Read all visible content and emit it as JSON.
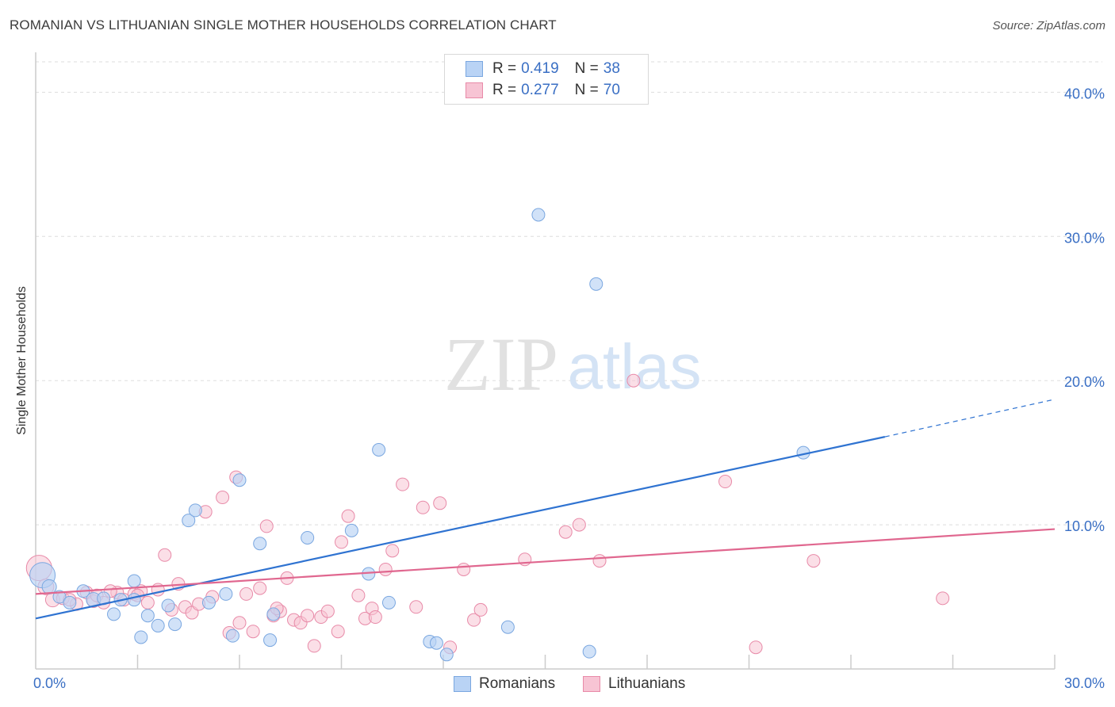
{
  "title": "ROMANIAN VS LITHUANIAN SINGLE MOTHER HOUSEHOLDS CORRELATION CHART",
  "source": "Source: ZipAtlas.com",
  "watermark": {
    "zip": "ZIP",
    "atlas": "atlas"
  },
  "legend": {
    "romanians": {
      "r_label": "R =",
      "r_value": "0.419",
      "n_label": "N =",
      "n_value": "38"
    },
    "lithuanians": {
      "r_label": "R =",
      "r_value": "0.277",
      "n_label": "N =",
      "n_value": "70"
    }
  },
  "colors": {
    "romanians_fill": "#b9d3f5",
    "romanians_stroke": "#7aa7e0",
    "romanians_line": "#2f73d1",
    "lithuanians_fill": "#f7c4d4",
    "lithuanians_stroke": "#e88aa8",
    "lithuanians_line": "#e0678f",
    "tick_label": "#3a6fc4",
    "grid": "#dddddd"
  },
  "chart_data": {
    "type": "scatter",
    "title": "ROMANIAN VS LITHUANIAN SINGLE MOTHER HOUSEHOLDS CORRELATION CHART",
    "xlabel": "",
    "ylabel": "Single Mother Households",
    "xlim": [
      0,
      30
    ],
    "ylim": [
      0,
      42
    ],
    "x_tick_labels": [
      {
        "value": 0,
        "label": "0.0%"
      },
      {
        "value": 30,
        "label": "30.0%"
      }
    ],
    "y_tick_labels": [
      {
        "value": 10,
        "label": "10.0%"
      },
      {
        "value": 20,
        "label": "20.0%"
      },
      {
        "value": 30,
        "label": "30.0%"
      },
      {
        "value": 40,
        "label": "40.0%"
      }
    ],
    "series": [
      {
        "name": "Romanians",
        "r": 0.419,
        "n": 38,
        "trend": {
          "x0": 0,
          "y0": 3.5,
          "x1": 25,
          "y1": 16.1,
          "dash_to_x": 30,
          "dash_to_y": 18.7
        },
        "points": [
          [
            0.2,
            6.5,
            16
          ],
          [
            0.4,
            5.7,
            9
          ],
          [
            0.7,
            5.0,
            8
          ],
          [
            1.0,
            4.6,
            8
          ],
          [
            1.4,
            5.4,
            8
          ],
          [
            1.7,
            4.8,
            9
          ],
          [
            2.0,
            4.9,
            8
          ],
          [
            2.3,
            3.8,
            8
          ],
          [
            2.5,
            4.8,
            8
          ],
          [
            2.9,
            6.1,
            8
          ],
          [
            3.1,
            2.2,
            8
          ],
          [
            3.3,
            3.7,
            8
          ],
          [
            3.6,
            3.0,
            8
          ],
          [
            3.9,
            4.4,
            8
          ],
          [
            4.1,
            3.1,
            8
          ],
          [
            4.5,
            10.3,
            8
          ],
          [
            4.7,
            11.0,
            8
          ],
          [
            5.1,
            4.6,
            8
          ],
          [
            5.6,
            5.2,
            8
          ],
          [
            5.8,
            2.3,
            8
          ],
          [
            6.0,
            13.1,
            8
          ],
          [
            6.6,
            8.7,
            8
          ],
          [
            6.9,
            2.0,
            8
          ],
          [
            7.0,
            3.8,
            8
          ],
          [
            8.0,
            9.1,
            8
          ],
          [
            9.3,
            9.6,
            8
          ],
          [
            9.8,
            6.6,
            8
          ],
          [
            10.1,
            15.2,
            8
          ],
          [
            10.4,
            4.6,
            8
          ],
          [
            11.6,
            1.9,
            8
          ],
          [
            11.8,
            1.8,
            8
          ],
          [
            12.1,
            1.0,
            8
          ],
          [
            13.9,
            2.9,
            8
          ],
          [
            14.8,
            31.5,
            8
          ],
          [
            16.3,
            1.2,
            8
          ],
          [
            16.5,
            26.7,
            8
          ],
          [
            22.6,
            15.0,
            8
          ],
          [
            2.9,
            4.8,
            8
          ]
        ]
      },
      {
        "name": "Lithuanians",
        "r": 0.277,
        "n": 70,
        "trend": {
          "x0": 0,
          "y0": 5.2,
          "x1": 30,
          "y1": 9.7
        },
        "points": [
          [
            0.1,
            7.0,
            16
          ],
          [
            0.3,
            5.7,
            10
          ],
          [
            0.5,
            4.8,
            9
          ],
          [
            0.8,
            4.9,
            8
          ],
          [
            1.2,
            4.5,
            8
          ],
          [
            1.5,
            5.3,
            8
          ],
          [
            1.7,
            4.7,
            8
          ],
          [
            1.8,
            5.1,
            8
          ],
          [
            2.0,
            4.6,
            8
          ],
          [
            2.4,
            5.3,
            8
          ],
          [
            2.6,
            4.8,
            8
          ],
          [
            2.9,
            5.2,
            8
          ],
          [
            3.1,
            5.4,
            8
          ],
          [
            3.3,
            4.6,
            8
          ],
          [
            3.6,
            5.5,
            8
          ],
          [
            3.8,
            7.9,
            8
          ],
          [
            4.0,
            4.1,
            8
          ],
          [
            4.2,
            5.9,
            8
          ],
          [
            4.4,
            4.3,
            8
          ],
          [
            4.6,
            3.9,
            8
          ],
          [
            4.8,
            4.5,
            8
          ],
          [
            5.0,
            10.9,
            8
          ],
          [
            5.2,
            5.0,
            8
          ],
          [
            5.5,
            11.9,
            8
          ],
          [
            5.7,
            2.5,
            8
          ],
          [
            5.9,
            13.3,
            8
          ],
          [
            6.0,
            3.2,
            8
          ],
          [
            6.2,
            5.2,
            8
          ],
          [
            6.4,
            2.6,
            8
          ],
          [
            6.6,
            5.6,
            8
          ],
          [
            6.8,
            9.9,
            8
          ],
          [
            7.0,
            3.7,
            8
          ],
          [
            7.2,
            4.0,
            8
          ],
          [
            7.4,
            6.3,
            8
          ],
          [
            7.6,
            3.4,
            8
          ],
          [
            7.8,
            3.2,
            8
          ],
          [
            8.0,
            3.7,
            8
          ],
          [
            8.2,
            1.6,
            8
          ],
          [
            8.4,
            3.6,
            8
          ],
          [
            8.6,
            4.0,
            8
          ],
          [
            8.9,
            2.6,
            8
          ],
          [
            9.0,
            8.8,
            8
          ],
          [
            9.2,
            10.6,
            8
          ],
          [
            9.5,
            5.1,
            8
          ],
          [
            9.7,
            3.5,
            8
          ],
          [
            9.9,
            4.2,
            8
          ],
          [
            10.0,
            3.6,
            8
          ],
          [
            10.3,
            6.9,
            8
          ],
          [
            10.5,
            8.2,
            8
          ],
          [
            10.8,
            12.8,
            8
          ],
          [
            11.2,
            4.3,
            8
          ],
          [
            11.4,
            11.2,
            8
          ],
          [
            11.9,
            11.5,
            8
          ],
          [
            12.2,
            1.5,
            8
          ],
          [
            12.6,
            6.9,
            8
          ],
          [
            12.9,
            3.4,
            8
          ],
          [
            13.1,
            4.1,
            8
          ],
          [
            14.4,
            7.6,
            8
          ],
          [
            15.6,
            9.5,
            8
          ],
          [
            16.0,
            10.0,
            8
          ],
          [
            16.6,
            7.5,
            8
          ],
          [
            17.6,
            20.0,
            8
          ],
          [
            20.3,
            13.0,
            8
          ],
          [
            21.2,
            1.5,
            8
          ],
          [
            22.9,
            7.5,
            8
          ],
          [
            26.7,
            4.9,
            8
          ],
          [
            3.0,
            5.1,
            8
          ],
          [
            2.2,
            5.4,
            8
          ],
          [
            1.0,
            4.8,
            8
          ],
          [
            7.1,
            4.2,
            8
          ]
        ]
      }
    ]
  }
}
